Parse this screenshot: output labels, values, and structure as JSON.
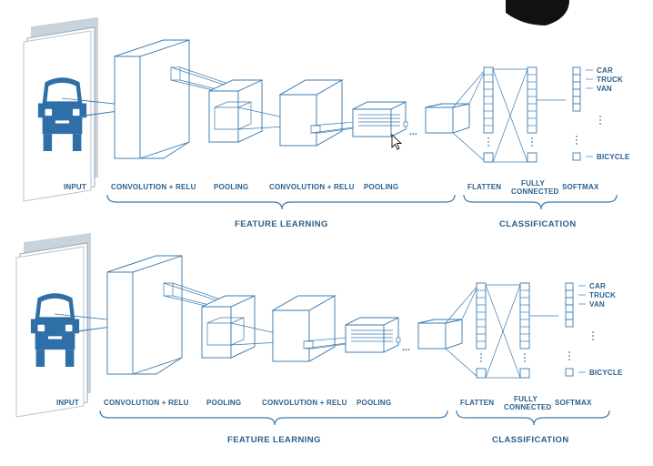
{
  "diagrams": [
    {
      "labels": {
        "input": "INPUT",
        "conv1": "CONVOLUTION + RELU",
        "pool1": "POOLING",
        "conv2": "CONVOLUTION + RELU",
        "pool2": "POOLING",
        "flatten": "FLATTEN",
        "fully_line1": "FULLY",
        "fully_line2": "CONNECTED",
        "softmax": "SOFTMAX",
        "feature_learning": "FEATURE LEARNING",
        "classification": "CLASSIFICATION",
        "ellipsis": "...",
        "outputs": [
          "CAR",
          "TRUCK",
          "VAN",
          "BICYCLE"
        ]
      }
    },
    {
      "labels": {
        "input": "INPUT",
        "conv1": "CONVOLUTION + RELU",
        "pool1": "POOLING",
        "conv2": "CONVOLUTION + RELU",
        "pool2": "POOLING",
        "flatten": "FLATTEN",
        "fully_line1": "FULLY",
        "fully_line2": "CONNECTED",
        "softmax": "SOFTMAX",
        "feature_learning": "FEATURE LEARNING",
        "classification": "CLASSIFICATION",
        "ellipsis": "...",
        "outputs": [
          "CAR",
          "TRUCK",
          "VAN",
          "BICYCLE"
        ]
      }
    }
  ],
  "colors": {
    "primary": "#3a7bb0",
    "text": "#2a5f8c",
    "car": "#2f6fa8"
  },
  "icons": [
    "car-icon",
    "mouse-cursor-icon"
  ]
}
